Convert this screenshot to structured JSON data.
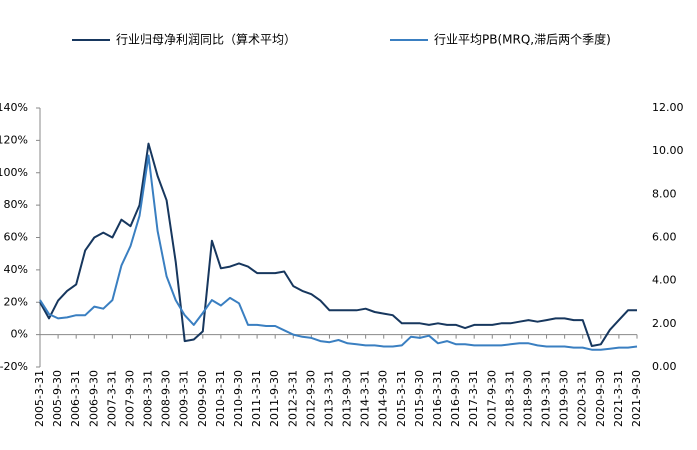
{
  "chart_data": {
    "type": "line",
    "categories": [
      "2005-3-31",
      null,
      "2005-9-30",
      null,
      "2006-3-31",
      null,
      "2006-9-30",
      null,
      "2007-3-31",
      null,
      "2007-9-30",
      null,
      "2008-3-31",
      null,
      "2008-9-30",
      null,
      "2009-3-31",
      null,
      "2009-9-30",
      null,
      "2010-3-31",
      null,
      "2010-9-30",
      null,
      "2011-3-31",
      null,
      "2011-9-30",
      null,
      "2012-3-31",
      null,
      "2012-9-30",
      null,
      "2013-3-31",
      null,
      "2013-9-30",
      null,
      "2014-3-31",
      null,
      "2014-9-30",
      null,
      "2015-3-31",
      null,
      "2015-9-30",
      null,
      "2016-3-31",
      null,
      "2016-9-30",
      null,
      "2017-3-31",
      null,
      "2017-9-30",
      null,
      "2018-3-31",
      null,
      "2018-9-30",
      null,
      "2019-3-31",
      null,
      "2019-9-30",
      null,
      "2020-3-31",
      null,
      "2020-9-30",
      null,
      "2021-3-31",
      null,
      "2021-9-30"
    ],
    "series": [
      {
        "name": "行业归母净利润同比（算术平均）",
        "color": "#17375e",
        "values": [
          20,
          10,
          21,
          27,
          31,
          52,
          60,
          63,
          60,
          71,
          67,
          80,
          118,
          98,
          83,
          45,
          -4,
          -3,
          2,
          58,
          41,
          42,
          44,
          42,
          38,
          38,
          38,
          39,
          30,
          27,
          25,
          21,
          15,
          15,
          15,
          15,
          16,
          14,
          13,
          12,
          7,
          7,
          7,
          6,
          7,
          6,
          6,
          4,
          6,
          6,
          6,
          7,
          7,
          8,
          9,
          8,
          9,
          10,
          10,
          9,
          9,
          -7,
          -6,
          3,
          9,
          15,
          15
        ]
      },
      {
        "name": "行业平均PB(MRQ,滞后两个季度)",
        "color": "#3a7fc1",
        "axis": "y2",
        "values": [
          3.1,
          2.45,
          2.25,
          2.3,
          2.4,
          2.4,
          2.8,
          2.7,
          3.1,
          4.7,
          5.6,
          7.0,
          9.8,
          6.3,
          4.2,
          3.1,
          2.4,
          1.95,
          2.5,
          3.1,
          2.85,
          3.2,
          2.95,
          1.95,
          1.95,
          1.9,
          1.9,
          1.7,
          1.5,
          1.4,
          1.35,
          1.2,
          1.15,
          1.25,
          1.1,
          1.05,
          1.0,
          1.0,
          0.95,
          0.95,
          1.0,
          1.4,
          1.35,
          1.45,
          1.1,
          1.2,
          1.05,
          1.05,
          1.0,
          1.0,
          1.0,
          1.0,
          1.05,
          1.1,
          1.1,
          1.0,
          0.95,
          0.95,
          0.95,
          0.9,
          0.9,
          0.8,
          0.8,
          0.85,
          0.9,
          0.9,
          0.95
        ]
      }
    ],
    "ylim": [
      -20,
      140
    ],
    "yticks": [
      {
        "value": -20,
        "label": "-20%"
      },
      {
        "value": 0,
        "label": "0%"
      },
      {
        "value": 20,
        "label": "20%"
      },
      {
        "value": 40,
        "label": "40%"
      },
      {
        "value": 60,
        "label": "60%"
      },
      {
        "value": 80,
        "label": "80%"
      },
      {
        "value": 100,
        "label": "100%"
      },
      {
        "value": 120,
        "label": "120%"
      },
      {
        "value": 140,
        "label": "140%"
      }
    ],
    "y2lim": [
      0,
      12
    ],
    "y2ticks": [
      {
        "value": 0,
        "label": "0.00"
      },
      {
        "value": 2,
        "label": "2.00"
      },
      {
        "value": 4,
        "label": "4.00"
      },
      {
        "value": 6,
        "label": "6.00"
      },
      {
        "value": 8,
        "label": "8.00"
      },
      {
        "value": 10,
        "label": "10.00"
      },
      {
        "value": 12,
        "label": "12.00"
      }
    ],
    "legend": "top"
  }
}
